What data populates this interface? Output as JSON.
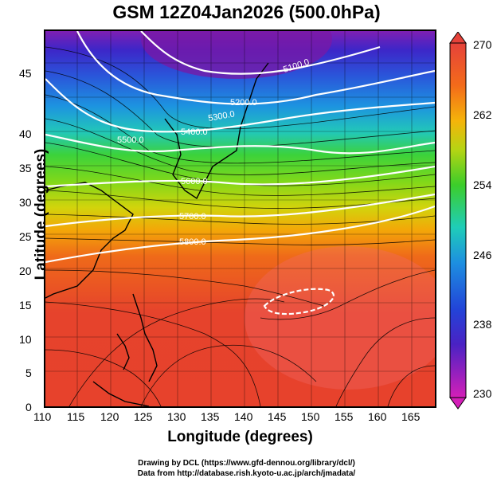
{
  "title": "GSM 12Z04Jan2026 (500.0hPa)",
  "map": {
    "x_axis_label": "Longitude (degrees)",
    "y_axis_label": "Latitude  (degrees)",
    "x_ticks": [
      "110",
      "115",
      "120",
      "125",
      "130",
      "135",
      "140",
      "145",
      "150",
      "155",
      "160",
      "165"
    ],
    "y_ticks": [
      "0",
      "5",
      "10",
      "15",
      "20",
      "25",
      "30",
      "35",
      "40",
      "45"
    ],
    "colorbar_ticks": [
      "270",
      "262",
      "254",
      "246",
      "238",
      "230"
    ],
    "contour_labels": [
      "5100.0",
      "5200.0",
      "5300.0",
      "5400.0",
      "5500.0",
      "5600.0",
      "5700.0",
      "5800.0"
    ]
  },
  "credits": {
    "line1": "Drawing by DCL (https://www.gfd-dennou.org/library/dcl/)",
    "line2": "Data from http://database.rish.kyoto-u.ac.jp/arch/jmadata/"
  },
  "colors": {
    "cold": "#9b1fc9",
    "cool": "#1c5bd6",
    "mid": "#33c400",
    "warm": "#f17d0a",
    "hot": "#e44b3a"
  }
}
